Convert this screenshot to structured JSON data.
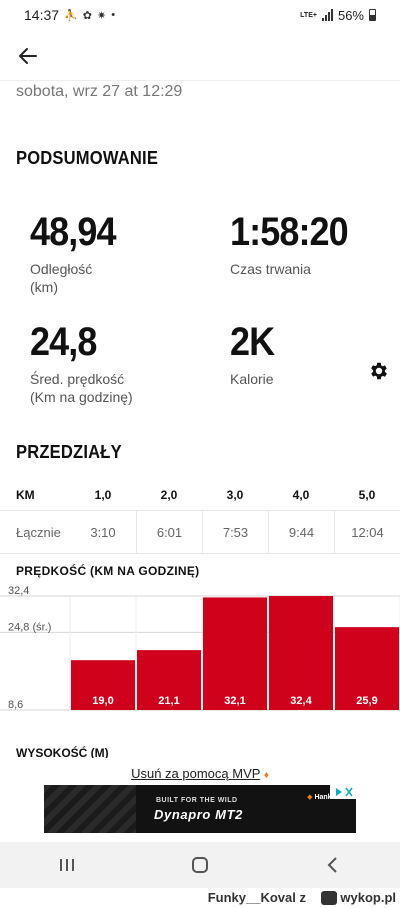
{
  "status_bar": {
    "time": "14:37",
    "network": "LTE+",
    "battery": "56%"
  },
  "activity": {
    "date": "sobota, wrz 27 at 12:29"
  },
  "summary": {
    "title": "PODSUMOWANIE",
    "stats": [
      {
        "value": "48,94",
        "label_line1": "Odległość",
        "label_line2": "(km)"
      },
      {
        "value": "1:58:20",
        "label_line1": "Czas trwania",
        "label_line2": ""
      },
      {
        "value": "24,8",
        "label_line1": "Śred. prędkość",
        "label_line2": "(Km na godzinę)"
      },
      {
        "value": "2K",
        "label_line1": "Kalorie",
        "label_line2": ""
      }
    ]
  },
  "splits": {
    "title": "PRZEDZIAŁY",
    "unit_header": "KM",
    "km_marks": [
      "1,0",
      "2,0",
      "3,0",
      "4,0",
      "5,0"
    ],
    "row_label": "Łącznie",
    "cumulative_times": [
      "3:10",
      "6:01",
      "7:53",
      "9:44",
      "12:04"
    ]
  },
  "speed_chart": {
    "title": "PRĘDKOŚĆ (KM NA GODZINĘ)",
    "bar_color": "#d0021b"
  },
  "chart_data": {
    "type": "bar",
    "categories": [
      "1,0",
      "2,0",
      "3,0",
      "4,0",
      "5,0"
    ],
    "values": [
      19.0,
      21.1,
      32.1,
      32.4,
      25.9
    ],
    "value_labels": [
      "19,0",
      "21,1",
      "32,1",
      "32,4",
      "25,9"
    ],
    "y_ticks": [
      "32,4",
      "24,8 (śr.)",
      "8,6"
    ],
    "ylim": [
      8.6,
      32.4
    ],
    "average": 24.8
  },
  "elevation": {
    "title": "WYSOKOŚĆ (M)"
  },
  "ad": {
    "remove_prefix": "Usuń za pomocą MVP",
    "banner_line1": "BUILT FOR THE WILD",
    "banner_line2": "Dynapro MT2",
    "brand": "Hankook"
  },
  "watermark": {
    "user": "Funky__Koval z",
    "site": "wykop.pl"
  }
}
